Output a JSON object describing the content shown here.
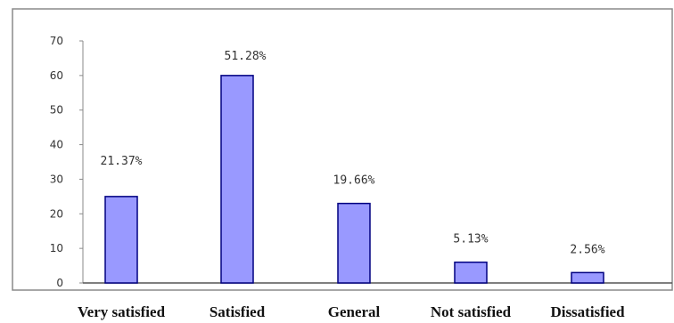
{
  "chart_data": {
    "type": "bar",
    "categories": [
      "Very satisfied",
      "Satisfied",
      "General",
      "Not satisfied",
      "Dissatisfied"
    ],
    "values": [
      25,
      60,
      23,
      6,
      3
    ],
    "data_labels": [
      "21.37%",
      "51.28%",
      "19.66%",
      "5.13%",
      "2.56%"
    ],
    "title": "",
    "xlabel": "",
    "ylabel": "",
    "ylim": [
      0,
      70
    ],
    "yticks": [
      "0",
      "10",
      "20",
      "30",
      "40",
      "50",
      "60",
      "70"
    ],
    "grid": false,
    "legend": "none",
    "bar_color": "#9999ff",
    "bar_edge_color": "#000080"
  }
}
